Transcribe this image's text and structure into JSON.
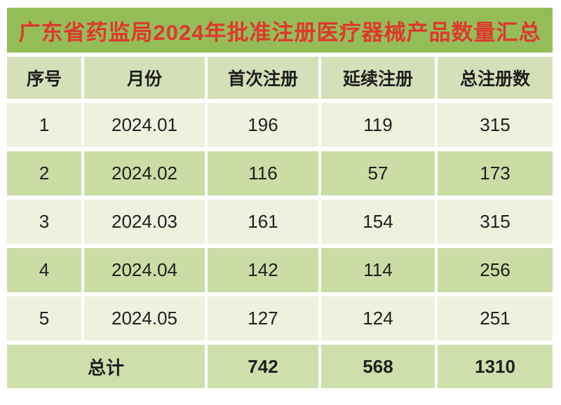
{
  "title": "广东省药监局2024年批准注册医疗器械产品数量汇总",
  "chart_data": {
    "type": "table",
    "title": "广东省药监局2024年批准注册医疗器械产品数量汇总",
    "columns": [
      "序号",
      "月份",
      "首次注册",
      "延续注册",
      "总注册数"
    ],
    "rows": [
      [
        "1",
        "2024.01",
        "196",
        "119",
        "315"
      ],
      [
        "2",
        "2024.02",
        "116",
        "57",
        "173"
      ],
      [
        "3",
        "2024.03",
        "161",
        "154",
        "315"
      ],
      [
        "4",
        "2024.04",
        "142",
        "114",
        "256"
      ],
      [
        "5",
        "2024.05",
        "127",
        "124",
        "251"
      ]
    ],
    "total_row": [
      "总计",
      "742",
      "568",
      "1310"
    ],
    "layout": {
      "merged_total_label_columns": [
        "序号",
        "月份"
      ],
      "alternating_row_shading": true,
      "grid_lines": "white gaps between cells"
    }
  },
  "colors": {
    "title_bar_bg": "#94BD58",
    "title_text": "#DF382D",
    "header_bg": "#D5E0B9",
    "row_odd_bg": "#EDF2DF",
    "row_even_bg": "#CBDCA4",
    "total_bg": "#CFDFAB",
    "text": "#1F1F1F",
    "gap": "#FFFFFF"
  }
}
